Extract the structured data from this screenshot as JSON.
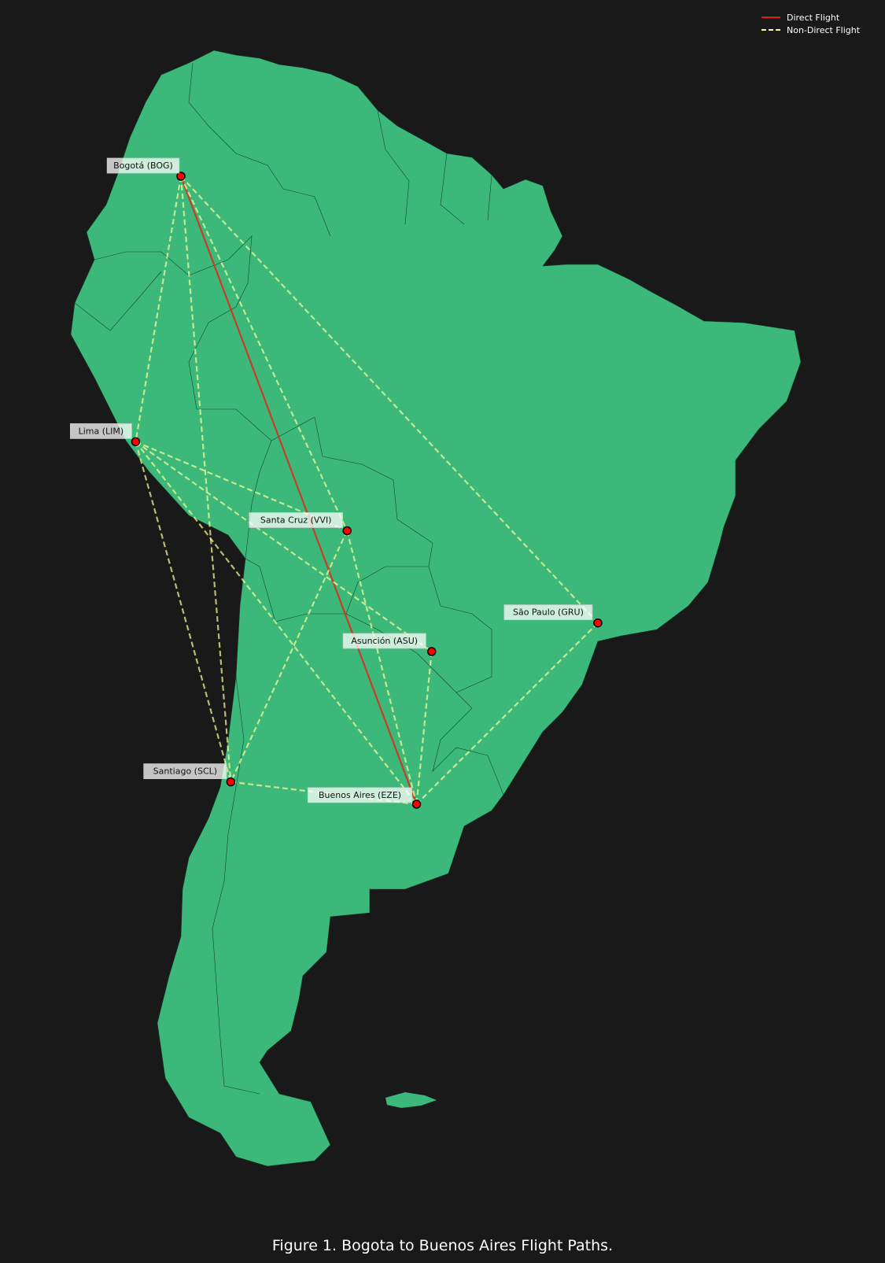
{
  "map": {
    "land_color": "#3bb87a",
    "background_color": "#191919",
    "border_color": "#14472e",
    "direct_color": "#d7301f",
    "nondirect_color": "#ffff99",
    "marker_color": "#ff0000"
  },
  "legend": {
    "direct_label": "Direct Flight",
    "nondirect_label": "Non-Direct Flight"
  },
  "caption": "Figure 1. Bogota to Buenos Aires Flight Paths.",
  "cities": [
    {
      "id": "BOG",
      "label": "Bogotá (BOG)",
      "lat": 4.7,
      "lon": -74.1
    },
    {
      "id": "LIM",
      "label": "Lima (LIM)",
      "lat": -12.0,
      "lon": -77.1
    },
    {
      "id": "VVI",
      "label": "Santa Cruz (VVI)",
      "lat": -17.6,
      "lon": -63.1
    },
    {
      "id": "GRU",
      "label": "São Paulo (GRU)",
      "lat": -23.4,
      "lon": -46.5
    },
    {
      "id": "ASU",
      "label": "Asunción (ASU)",
      "lat": -25.2,
      "lon": -57.5
    },
    {
      "id": "SCL",
      "label": "Santiago (SCL)",
      "lat": -33.4,
      "lon": -70.8
    },
    {
      "id": "EZE",
      "label": "Buenos Aires (EZE)",
      "lat": -34.8,
      "lon": -58.5
    }
  ],
  "routes": [
    {
      "from": "BOG",
      "to": "EZE",
      "type": "direct"
    },
    {
      "from": "BOG",
      "to": "LIM",
      "type": "non-direct"
    },
    {
      "from": "BOG",
      "to": "VVI",
      "type": "non-direct"
    },
    {
      "from": "BOG",
      "to": "GRU",
      "type": "non-direct"
    },
    {
      "from": "BOG",
      "to": "SCL",
      "type": "non-direct"
    },
    {
      "from": "LIM",
      "to": "VVI",
      "type": "non-direct"
    },
    {
      "from": "LIM",
      "to": "ASU",
      "type": "non-direct"
    },
    {
      "from": "LIM",
      "to": "SCL",
      "type": "non-direct"
    },
    {
      "from": "LIM",
      "to": "EZE",
      "type": "non-direct"
    },
    {
      "from": "VVI",
      "to": "SCL",
      "type": "non-direct"
    },
    {
      "from": "VVI",
      "to": "EZE",
      "type": "non-direct"
    },
    {
      "from": "ASU",
      "to": "EZE",
      "type": "non-direct"
    },
    {
      "from": "SCL",
      "to": "EZE",
      "type": "non-direct"
    },
    {
      "from": "GRU",
      "to": "EZE",
      "type": "non-direct"
    }
  ]
}
